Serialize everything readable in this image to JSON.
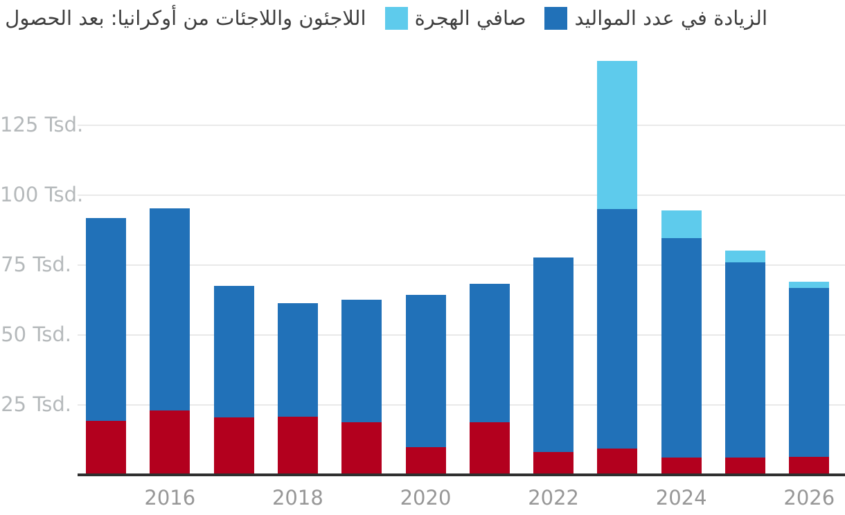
{
  "legend": {
    "items": [
      {
        "key": "births-increase",
        "label": "الزيادة في عدد المواليد",
        "color": "#2171b8"
      },
      {
        "key": "net-migration",
        "label": "صافي الهجرة",
        "color": "#5ecbec"
      },
      {
        "key": "ukraine-refugees",
        "label": "اللاجئون واللاجئات من أوكرانيا: بعد الحصول على الإقامة الدائمة",
        "color": "#b3001e"
      }
    ]
  },
  "axes": {
    "y_unit": "Tsd.",
    "y_ticks": [
      {
        "value": 25,
        "label": "25 Tsd."
      },
      {
        "value": 50,
        "label": "50 Tsd."
      },
      {
        "value": 75,
        "label": "75 Tsd."
      },
      {
        "value": 100,
        "label": "100 Tsd."
      },
      {
        "value": 125,
        "label": "125 Tsd."
      }
    ],
    "x_tick_labels": [
      "2016",
      "2018",
      "2020",
      "2022",
      "2024",
      "2026"
    ]
  },
  "chart_data": {
    "type": "bar",
    "stacked": true,
    "title": "",
    "unit": "Tsd.",
    "categories": [
      "2015",
      "2016",
      "2017",
      "2018",
      "2019",
      "2020",
      "2021",
      "2022",
      "2023",
      "2024",
      "2025",
      "2026"
    ],
    "series": [
      {
        "name": "اللاجئون واللاجئات من أوكرانيا: بعد الحصول على الإقامة الدائمة",
        "color": "#b3001e",
        "values": [
          19.2,
          23.1,
          20.5,
          20.7,
          18.7,
          9.9,
          18.7,
          8.1,
          9.4,
          6.2,
          6.2,
          6.4
        ]
      },
      {
        "name": "الزيادة في عدد المواليد",
        "color": "#2171b8",
        "values": [
          72.7,
          72.2,
          47.0,
          40.6,
          43.9,
          54.4,
          49.5,
          69.5,
          85.7,
          78.5,
          69.9,
          60.4
        ]
      },
      {
        "name": "صافي الهجرة",
        "color": "#5ecbec",
        "values": [
          0,
          0,
          0,
          0,
          0,
          0,
          0,
          0,
          53.0,
          9.9,
          4.2,
          2.2
        ]
      }
    ],
    "ylim": [
      0,
      150
    ],
    "grid": true,
    "legend_position": "top",
    "x_labeled_every": 2
  }
}
